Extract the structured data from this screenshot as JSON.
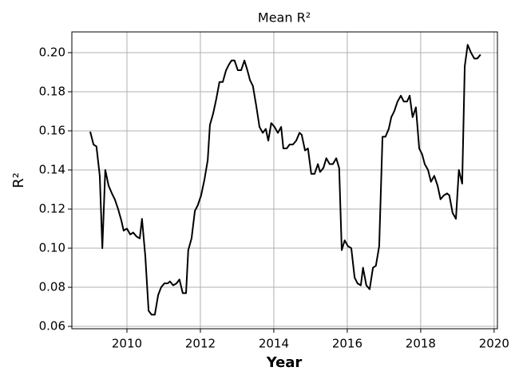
{
  "chart_data": {
    "type": "line",
    "title": "Mean R²",
    "xlabel": "Year",
    "ylabel": "R²",
    "color": "#000000",
    "grid": true,
    "xlim": [
      2008.5,
      2020.09
    ],
    "ylim": [
      0.0588,
      0.2106
    ],
    "xticks": [
      2010,
      2012,
      2014,
      2016,
      2018,
      2020
    ],
    "yticks": [
      0.06,
      0.08,
      {
        "value": 0.1,
        "label": "0.10"
      },
      0.12,
      0.14,
      0.16,
      0.18,
      {
        "value": 0.2,
        "label": "0.20"
      }
    ],
    "x": [
      2009.0,
      2009.09,
      2009.17,
      2009.26,
      2009.33,
      2009.41,
      2009.5,
      2009.59,
      2009.67,
      2009.76,
      2009.85,
      2009.91,
      2010.0,
      2010.09,
      2010.17,
      2010.26,
      2010.35,
      2010.41,
      2010.5,
      2010.59,
      2010.67,
      2010.76,
      2010.85,
      2010.93,
      2011.02,
      2011.11,
      2011.17,
      2011.26,
      2011.35,
      2011.43,
      2011.52,
      2011.61,
      2011.67,
      2011.76,
      2011.85,
      2011.93,
      2012.02,
      2012.11,
      2012.2,
      2012.26,
      2012.35,
      2012.43,
      2012.52,
      2012.61,
      2012.7,
      2012.78,
      2012.85,
      2012.93,
      2013.02,
      2013.11,
      2013.2,
      2013.28,
      2013.35,
      2013.43,
      2013.52,
      2013.61,
      2013.7,
      2013.78,
      2013.85,
      2013.93,
      2014.02,
      2014.11,
      2014.2,
      2014.26,
      2014.35,
      2014.43,
      2014.52,
      2014.61,
      2014.7,
      2014.76,
      2014.85,
      2014.93,
      2015.02,
      2015.11,
      2015.2,
      2015.26,
      2015.35,
      2015.43,
      2015.52,
      2015.61,
      2015.7,
      2015.78,
      2015.85,
      2015.93,
      2016.02,
      2016.11,
      2016.2,
      2016.28,
      2016.37,
      2016.43,
      2016.52,
      2016.61,
      2016.7,
      2016.78,
      2016.87,
      2016.96,
      2017.04,
      2017.13,
      2017.2,
      2017.28,
      2017.37,
      2017.46,
      2017.54,
      2017.63,
      2017.7,
      2017.78,
      2017.87,
      2017.96,
      2018.04,
      2018.11,
      2018.2,
      2018.28,
      2018.37,
      2018.46,
      2018.54,
      2018.63,
      2018.72,
      2018.78,
      2018.87,
      2018.96,
      2019.04,
      2019.13,
      2019.2,
      2019.28,
      2019.37,
      2019.46,
      2019.54,
      2019.63
    ],
    "values": [
      0.1596,
      0.153,
      0.152,
      0.137,
      0.1,
      0.14,
      0.132,
      0.128,
      0.125,
      0.12,
      0.114,
      0.109,
      0.11,
      0.107,
      0.108,
      0.106,
      0.105,
      0.115,
      0.096,
      0.068,
      0.066,
      0.066,
      0.076,
      0.08,
      0.082,
      0.082,
      0.083,
      0.081,
      0.082,
      0.084,
      0.077,
      0.077,
      0.099,
      0.105,
      0.119,
      0.122,
      0.127,
      0.135,
      0.145,
      0.163,
      0.169,
      0.176,
      0.185,
      0.185,
      0.191,
      0.194,
      0.196,
      0.196,
      0.191,
      0.191,
      0.196,
      0.191,
      0.186,
      0.183,
      0.173,
      0.162,
      0.159,
      0.161,
      0.155,
      0.164,
      0.162,
      0.159,
      0.162,
      0.151,
      0.151,
      0.153,
      0.153,
      0.155,
      0.159,
      0.158,
      0.15,
      0.151,
      0.138,
      0.138,
      0.143,
      0.139,
      0.141,
      0.146,
      0.143,
      0.143,
      0.146,
      0.141,
      0.099,
      0.104,
      0.101,
      0.1,
      0.085,
      0.082,
      0.081,
      0.09,
      0.081,
      0.079,
      0.09,
      0.091,
      0.101,
      0.157,
      0.157,
      0.161,
      0.167,
      0.17,
      0.175,
      0.178,
      0.175,
      0.175,
      0.178,
      0.167,
      0.172,
      0.151,
      0.148,
      0.143,
      0.14,
      0.134,
      0.137,
      0.132,
      0.125,
      0.127,
      0.128,
      0.127,
      0.118,
      0.115,
      0.14,
      0.133,
      0.193,
      0.204,
      0.2,
      0.197,
      0.197,
      0.199
    ]
  }
}
